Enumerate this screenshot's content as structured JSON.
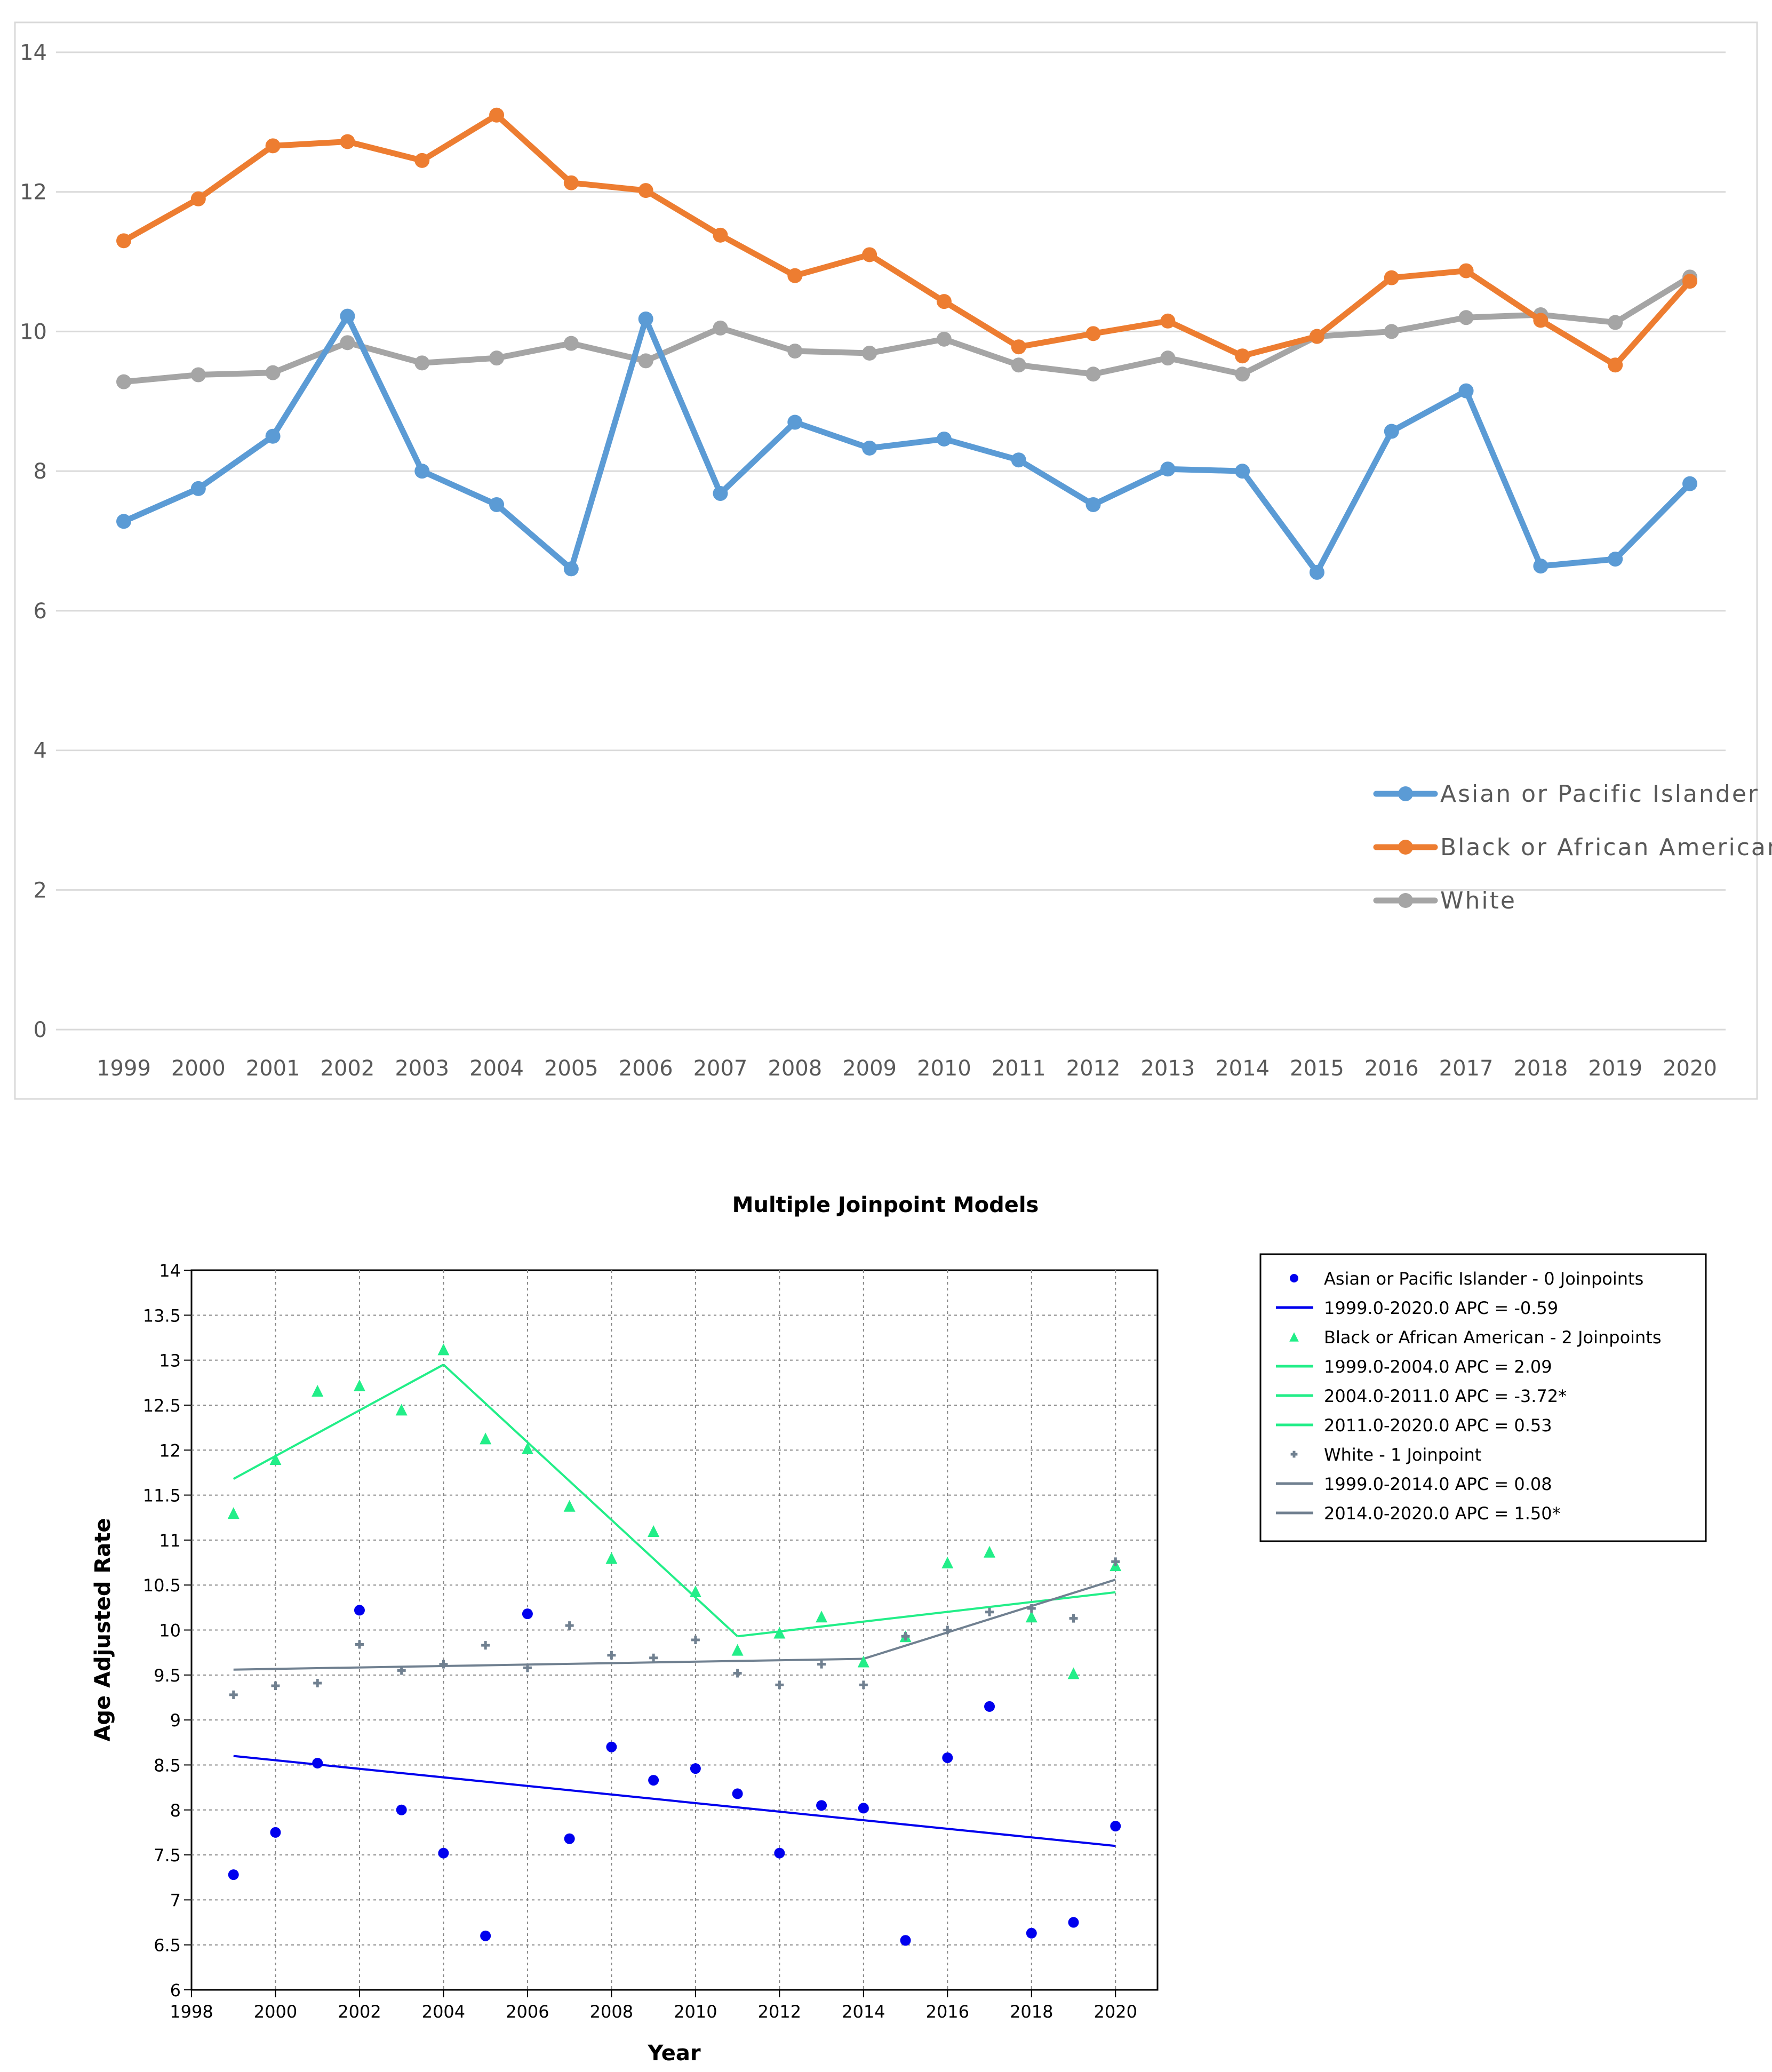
{
  "chart_data": [
    {
      "type": "line",
      "title": "",
      "xlabel": "",
      "ylabel": "",
      "ylim": [
        0,
        14
      ],
      "y_ticks": [
        "0",
        "2",
        "4",
        "6",
        "8",
        "10",
        "12",
        "14"
      ],
      "categories": [
        "1999",
        "2000",
        "2001",
        "2002",
        "2003",
        "2004",
        "2005",
        "2006",
        "2007",
        "2008",
        "2009",
        "2010",
        "2011",
        "2012",
        "2013",
        "2014",
        "2015",
        "2016",
        "2017",
        "2018",
        "2019",
        "2020"
      ],
      "grid": true,
      "legend_position": "bottom-right",
      "series": [
        {
          "name": "Asian or Pacific Islander",
          "color": "#5b9bd5",
          "values": [
            7.28,
            7.75,
            8.5,
            10.22,
            8.0,
            7.52,
            6.6,
            10.18,
            7.68,
            8.7,
            8.33,
            8.46,
            8.16,
            7.52,
            8.03,
            8.0,
            6.55,
            8.57,
            9.15,
            6.64,
            6.74,
            7.82
          ]
        },
        {
          "name": "Black or African American",
          "color": "#ed7d31",
          "values": [
            11.3,
            11.9,
            12.66,
            12.72,
            12.45,
            13.1,
            12.13,
            12.02,
            11.38,
            10.8,
            11.1,
            10.43,
            9.78,
            9.97,
            10.15,
            9.65,
            9.93,
            10.77,
            10.87,
            10.16,
            9.52,
            10.72
          ]
        },
        {
          "name": "White",
          "color": "#a5a5a5",
          "values": [
            9.28,
            9.38,
            9.41,
            9.84,
            9.55,
            9.62,
            9.83,
            9.58,
            10.05,
            9.72,
            9.69,
            9.89,
            9.52,
            9.39,
            9.62,
            9.39,
            9.93,
            10.0,
            10.2,
            10.24,
            10.13,
            10.78
          ]
        }
      ]
    },
    {
      "type": "scatter",
      "title": "Multiple Joinpoint Models",
      "xlabel": "Year",
      "ylabel": "Age Adjusted Rate",
      "xlim": [
        1998,
        2021
      ],
      "ylim": [
        6,
        14
      ],
      "x_ticks": [
        "1998",
        "2000",
        "2002",
        "2004",
        "2006",
        "2008",
        "2010",
        "2012",
        "2014",
        "2016",
        "2018",
        "2020"
      ],
      "y_ticks": [
        "6",
        "6.5",
        "7",
        "7.5",
        "8",
        "8.5",
        "9",
        "9.5",
        "10",
        "10.5",
        "11",
        "11.5",
        "12",
        "12.5",
        "13",
        "13.5",
        "14"
      ],
      "grid": true,
      "legend_position": "top-right-outside",
      "x": [
        1999,
        2000,
        2001,
        2002,
        2003,
        2004,
        2005,
        2006,
        2007,
        2008,
        2009,
        2010,
        2011,
        2012,
        2013,
        2014,
        2015,
        2016,
        2017,
        2018,
        2019,
        2020
      ],
      "series": [
        {
          "name": "Asian or Pacific Islander - 0 Joinpoints",
          "marker": "circle",
          "color": "#0000ee",
          "values": [
            7.28,
            7.75,
            8.52,
            10.22,
            8.0,
            7.52,
            6.6,
            10.18,
            7.68,
            8.7,
            8.33,
            8.46,
            8.18,
            7.52,
            8.05,
            8.02,
            6.55,
            8.58,
            9.15,
            6.63,
            6.75,
            7.82
          ],
          "fit": [
            {
              "label": "1999.0-2020.0 APC  =  -0.59",
              "x": [
                1999,
                2020
              ],
              "y": [
                8.6,
                7.6
              ]
            }
          ]
        },
        {
          "name": "Black or African American - 2 Joinpoints",
          "marker": "triangle",
          "color": "#22ee88",
          "values": [
            11.3,
            11.9,
            12.66,
            12.72,
            12.45,
            13.12,
            12.13,
            12.02,
            11.38,
            10.8,
            11.1,
            10.43,
            9.78,
            9.97,
            10.15,
            9.65,
            9.93,
            10.75,
            10.87,
            10.15,
            9.52,
            10.72
          ],
          "fit": [
            {
              "label": "1999.0-2004.0 APC  =  2.09",
              "x": [
                1999,
                2004
              ],
              "y": [
                11.68,
                12.95
              ]
            },
            {
              "label": "2004.0-2011.0 APC  =  -3.72*",
              "x": [
                2004,
                2011
              ],
              "y": [
                12.95,
                9.93
              ]
            },
            {
              "label": "2011.0-2020.0 APC  =  0.53",
              "x": [
                2011,
                2020
              ],
              "y": [
                9.93,
                10.42
              ]
            }
          ]
        },
        {
          "name": "White - 1 Joinpoint",
          "marker": "cross",
          "color": "#708090",
          "values": [
            9.28,
            9.38,
            9.41,
            9.84,
            9.55,
            9.62,
            9.83,
            9.58,
            10.05,
            9.72,
            9.69,
            9.89,
            9.52,
            9.39,
            9.62,
            9.39,
            9.93,
            10.0,
            10.2,
            10.24,
            10.13,
            10.76
          ],
          "fit": [
            {
              "label": "1999.0-2014.0 APC  =  0.08",
              "x": [
                1999,
                2014
              ],
              "y": [
                9.56,
                9.68
              ]
            },
            {
              "label": "2014.0-2020.0 APC  =  1.50*",
              "x": [
                2014,
                2020
              ],
              "y": [
                9.68,
                10.56
              ]
            }
          ]
        }
      ]
    }
  ]
}
